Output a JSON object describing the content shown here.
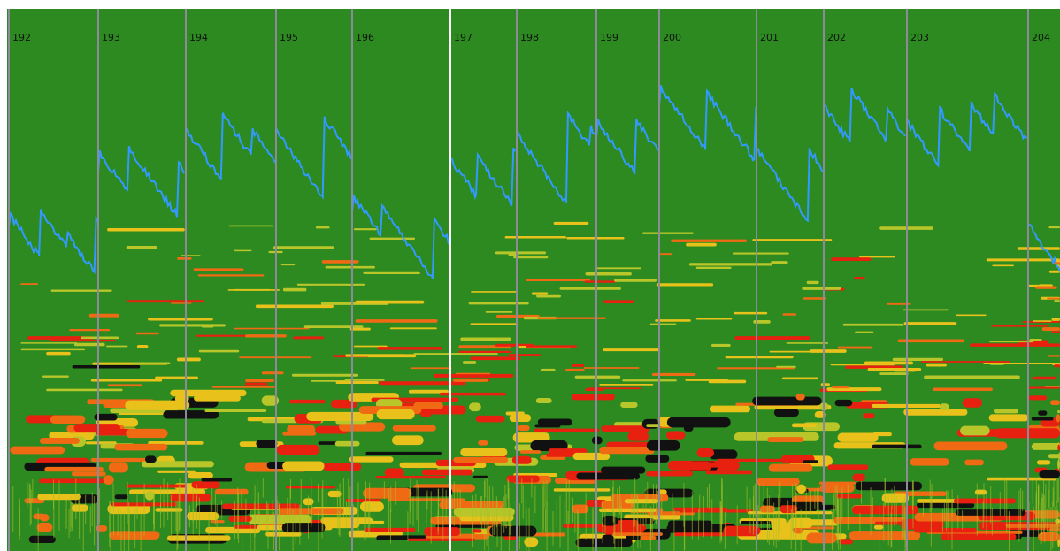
{
  "bars": [
    {
      "label": "192"
    },
    {
      "label": "193"
    },
    {
      "label": "194"
    },
    {
      "label": "195"
    },
    {
      "label": "196"
    },
    {
      "label": "197"
    },
    {
      "label": "198"
    },
    {
      "label": "199"
    },
    {
      "label": "200"
    },
    {
      "label": "201"
    },
    {
      "label": "202"
    },
    {
      "label": "203"
    },
    {
      "label": "204"
    }
  ]
}
